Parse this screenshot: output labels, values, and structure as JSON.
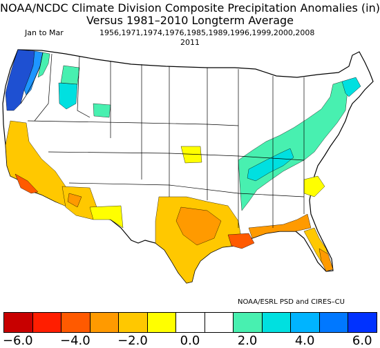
{
  "title": {
    "line1": "NOAA/NCDC Climate Division Composite Precipitation Anomalies (in)",
    "line2": "Versus 1981–2010 Longterm Average",
    "period": "Jan to Mar",
    "years": "1956,1971,1974,1976,1985,1989,1996,1999,2000,2008",
    "years_cont": "2011"
  },
  "credit": "NOAA/ESRL PSD and CIRES–CU",
  "colorbar": {
    "colors": [
      "#c80000",
      "#ff1e00",
      "#ff5a00",
      "#ff9a00",
      "#ffc800",
      "#ffff00",
      "#ffffff",
      "#ffffff",
      "#48f0b0",
      "#00e0e0",
      "#00b4ff",
      "#0078ff",
      "#0032ff"
    ],
    "tick_labels": [
      "−6.0",
      "−4.0",
      "−2.0",
      "0.0",
      "2.0",
      "4.0",
      "6.0"
    ]
  },
  "region_colors": {
    "pnw_dark": "#1e50d2",
    "pnw_mid": "#1e96ff",
    "cyan": "#00e0e0",
    "mint": "#48f0b0",
    "yellow": "#ffff00",
    "gold": "#ffc800",
    "orange": "#ff9a00",
    "dark_orange": "#ff5a00"
  }
}
